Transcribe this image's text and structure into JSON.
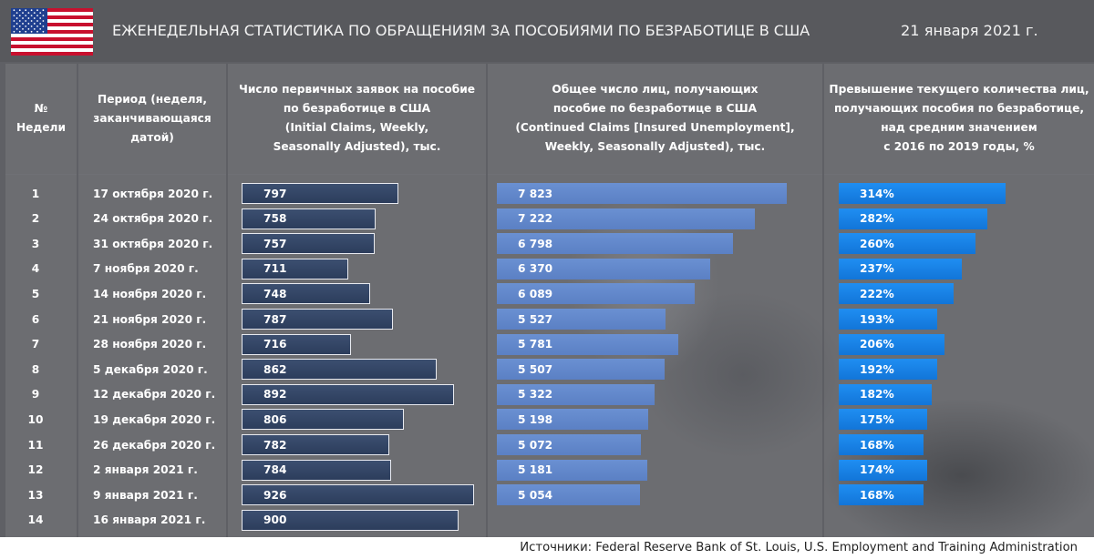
{
  "header": {
    "title": "ЕЖЕНЕДЕЛЬНАЯ СТАТИСТИКА ПО ОБРАЩЕНИЯМ ЗА ПОСОБИЯМИ ПО БЕЗРАБОТИЦЕ В США",
    "date": "21 января 2021 г."
  },
  "columns": {
    "num": [
      "№",
      "Недели"
    ],
    "period": [
      "Период  (неделя,",
      "заканчивающаяся",
      "датой)"
    ],
    "initial": [
      "Число первичных заявок на пособие",
      "по безработице в США",
      "(Initial Claims, Weekly,",
      "Seasonally Adjusted), тыс."
    ],
    "continued": [
      "Общее число лиц, получающих",
      "пособие по безработице в США",
      "(Continued Claims [Insured Unemployment],",
      "Weekly, Seasonally Adjusted), тыс."
    ],
    "percent": [
      "Превышение текущего количества лиц,",
      "получающих пособия по безработице,",
      "над средним значением",
      "с 2016 по 2019 годы, %"
    ]
  },
  "source": "Источники: Federal Reserve Bank of St. Louis, U.S. Employment and Training Administration",
  "colors": {
    "initial_bar": "#2f4060",
    "continued_bar": "#6388cc",
    "percent_bar": "#1a86ea",
    "header_bg": "#58595d"
  },
  "chart_data": {
    "type": "table",
    "title": "ЕЖЕНЕДЕЛЬНАЯ СТАТИСТИКА ПО ОБРАЩЕНИЯМ ЗА ПОСОБИЯМИ ПО БЕЗРАБОТИЦЕ В США",
    "categories": [
      "1",
      "2",
      "3",
      "4",
      "5",
      "6",
      "7",
      "8",
      "9",
      "10",
      "11",
      "12",
      "13",
      "14"
    ],
    "periods": [
      "17 октября 2020 г.",
      "24 октября 2020 г.",
      "31 октября 2020 г.",
      "7 ноября 2020 г.",
      "14 ноября 2020 г.",
      "21 ноября 2020 г.",
      "28 ноября 2020 г.",
      "5 декабря 2020 г.",
      "12 декабря 2020 г.",
      "19 декабря 2020 г.",
      "26 декабря 2020 г.",
      "2 января 2021 г.",
      "9 января 2021 г.",
      "16 января 2021 г."
    ],
    "series": [
      {
        "name": "Initial Claims, тыс.",
        "values": [
          797,
          758,
          757,
          711,
          748,
          787,
          716,
          862,
          892,
          806,
          782,
          784,
          926,
          900
        ],
        "labels": [
          "797",
          "758",
          "757",
          "711",
          "748",
          "787",
          "716",
          "862",
          "892",
          "806",
          "782",
          "784",
          "926",
          "900"
        ],
        "range": [
          0,
          1000
        ]
      },
      {
        "name": "Continued Claims, тыс.",
        "values": [
          7823,
          7222,
          6798,
          6370,
          6089,
          5527,
          5781,
          5507,
          5322,
          5198,
          5072,
          5181,
          5054,
          null
        ],
        "labels": [
          "7 823",
          "7 222",
          "6 798",
          "6 370",
          "6 089",
          "5 527",
          "5 781",
          "5 507",
          "5 322",
          "5 198",
          "5 072",
          "5 181",
          "5 054",
          ""
        ],
        "range": [
          0,
          9000
        ]
      },
      {
        "name": "Превышение над средним 2016–2019, %",
        "values": [
          314,
          282,
          260,
          237,
          222,
          193,
          206,
          192,
          182,
          175,
          168,
          174,
          168,
          null
        ],
        "labels": [
          "314%",
          "282%",
          "260%",
          "237%",
          "222%",
          "193%",
          "206%",
          "192%",
          "182%",
          "175%",
          "168%",
          "174%",
          "168%",
          ""
        ],
        "range": [
          0,
          450
        ]
      }
    ]
  }
}
